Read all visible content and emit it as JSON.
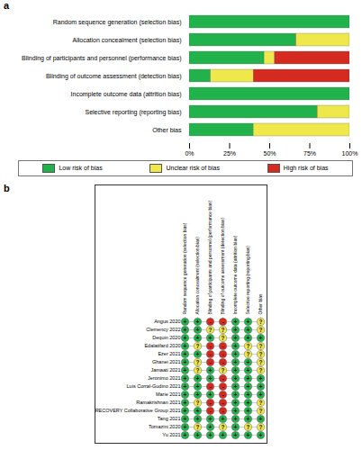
{
  "chart_data": [
    {
      "type": "bar",
      "title": "a",
      "orientation": "horizontal",
      "stacked": true,
      "categories": [
        "Random sequence generation (selection bias)",
        "Allocation concealment (selection bias)",
        "Blinding of participants and personnel (performance bias)",
        "Blinding of outcome assessment (detection bias)",
        "Incomplete outcome data (attrition bias)",
        "Selective reporting (reporting bias)",
        "Other bias"
      ],
      "series": [
        {
          "name": "Low risk of bias",
          "color": "#21b24b",
          "values": [
            100,
            66.7,
            46.7,
            13.3,
            100,
            80,
            40
          ]
        },
        {
          "name": "Unclear risk of bias",
          "color": "#eee84a",
          "values": [
            0,
            33.3,
            6.6,
            26.7,
            0,
            20,
            60
          ]
        },
        {
          "name": "High risk of bias",
          "color": "#d42a20",
          "values": [
            0,
            0,
            46.7,
            60,
            0,
            0,
            0
          ]
        }
      ],
      "xlim": [
        0,
        100
      ],
      "xticks": [
        {
          "value": 0,
          "label": "0%"
        },
        {
          "value": 25,
          "label": "25%"
        },
        {
          "value": 50,
          "label": "50%"
        },
        {
          "value": 75,
          "label": "75%"
        },
        {
          "value": 100,
          "label": "100%"
        }
      ],
      "legend": "bottom"
    },
    {
      "type": "grid",
      "title": "b",
      "categories": [
        "Random sequence generation (selection bias)",
        "Allocation concealment (selection bias)",
        "Blinding of participants and personnel (performance bias)",
        "Blinding of outcome assessment (detection bias)",
        "Incomplete outcome data (attrition bias)",
        "Selective reporting (reporting bias)",
        "Other bias"
      ],
      "rows": [
        "Angus 2020",
        "Clemency 2022",
        "Dequin 2020",
        "Edalatifard 2020",
        "Ezer 2021",
        "Ghanei 2021",
        "Jamaati 2021",
        "Jeronimo 2021",
        "Luis Corral-Gudino 2021",
        "Marie 2021",
        "Ramakrishnan 2021",
        "RECOVERY Collaborative Group 2021",
        "Tang 2021",
        "Tomazini 2020",
        "Yu 2021"
      ],
      "cells": [
        [
          "+",
          "+",
          "-",
          "-",
          "+",
          "+",
          "?"
        ],
        [
          "+",
          "+",
          "?",
          "?",
          "+",
          "+",
          "?"
        ],
        [
          "+",
          "+",
          "+",
          "?",
          "+",
          "+",
          "+"
        ],
        [
          "+",
          "?",
          "-",
          "-",
          "+",
          "?",
          "?"
        ],
        [
          "+",
          "+",
          "-",
          "-",
          "+",
          "?",
          "?"
        ],
        [
          "+",
          "?",
          "-",
          "-",
          "+",
          "+",
          "?"
        ],
        [
          "+",
          "?",
          "+",
          "?",
          "+",
          "+",
          "?"
        ],
        [
          "+",
          "+",
          "+",
          "-",
          "+",
          "+",
          "+"
        ],
        [
          "+",
          "+",
          "-",
          "-",
          "+",
          "+",
          "+"
        ],
        [
          "+",
          "+",
          "+",
          "-",
          "+",
          "+",
          "+"
        ],
        [
          "+",
          "?",
          "-",
          "-",
          "+",
          "+",
          "?"
        ],
        [
          "+",
          "+",
          "-",
          "-",
          "+",
          "+",
          "?"
        ],
        [
          "+",
          "+",
          "+",
          "+",
          "+",
          "+",
          "+"
        ],
        [
          "+",
          "?",
          "+",
          "?",
          "+",
          "?",
          "?"
        ],
        [
          "+",
          "+",
          "+",
          "+",
          "+",
          "+",
          "+"
        ]
      ],
      "symbol_colors": {
        "+": "#21b24b",
        "?": "#eee84a",
        "-": "#d42a20"
      }
    }
  ]
}
